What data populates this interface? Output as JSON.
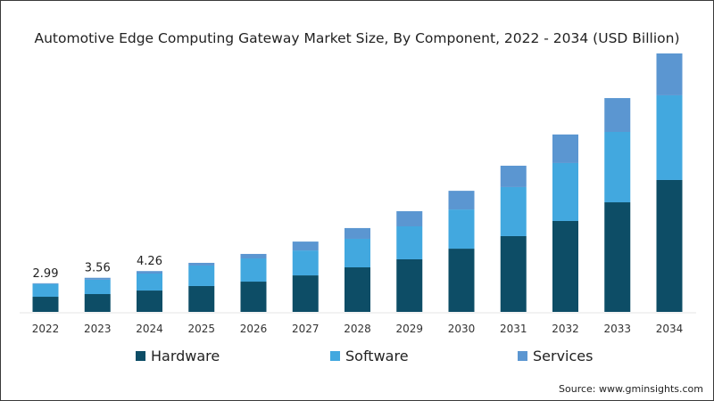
{
  "chart_data": {
    "type": "bar",
    "stacked": true,
    "title": "Automotive Edge Computing Gateway Market Size, By Component, 2022 - 2034 (USD Billion)",
    "xlabel": "",
    "ylabel": "",
    "categories": [
      "2022",
      "2023",
      "2024",
      "2025",
      "2026",
      "2027",
      "2028",
      "2029",
      "2030",
      "2031",
      "2032",
      "2033",
      "2034"
    ],
    "series": [
      {
        "name": "Hardware",
        "color": "#0d4d66",
        "values": [
          1.58,
          1.86,
          2.23,
          2.7,
          3.16,
          3.81,
          4.65,
          5.49,
          6.6,
          7.91,
          9.49,
          11.44,
          13.77
        ]
      },
      {
        "name": "Software",
        "color": "#42a8df",
        "values": [
          1.33,
          1.5,
          1.77,
          2.14,
          2.42,
          2.6,
          2.98,
          3.44,
          4.09,
          5.12,
          6.05,
          7.35,
          8.84
        ]
      },
      {
        "name": "Services",
        "color": "#5b96d1",
        "values": [
          0.08,
          0.2,
          0.26,
          0.28,
          0.47,
          0.93,
          1.12,
          1.58,
          1.95,
          2.23,
          2.98,
          3.53,
          4.37
        ]
      }
    ],
    "data_labels": [
      {
        "category": "2022",
        "text": "2.99"
      },
      {
        "category": "2023",
        "text": "3.56"
      },
      {
        "category": "2024",
        "text": "4.26"
      }
    ],
    "ylim": [
      0,
      27.5
    ],
    "grid": false,
    "legend_position": "bottom"
  },
  "source": "Source: www.gminsights.com"
}
